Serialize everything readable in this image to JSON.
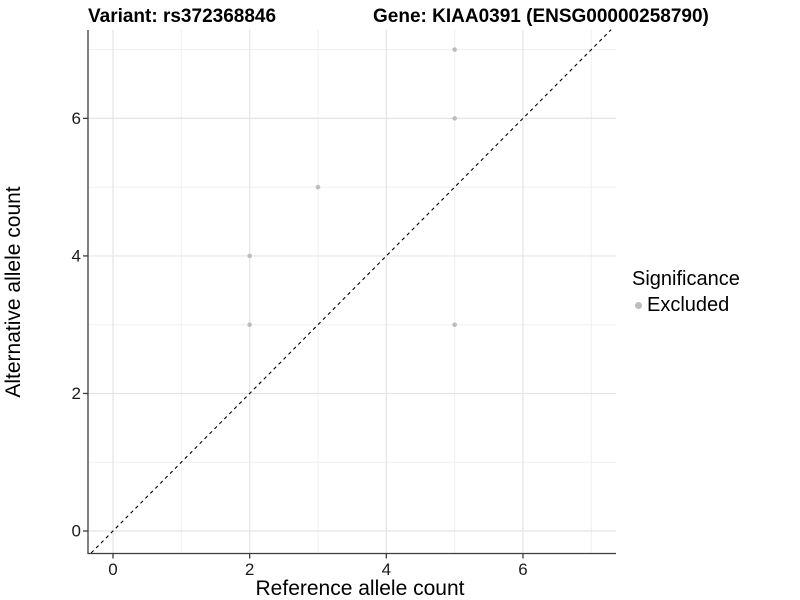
{
  "header": {
    "title_left": "Variant: rs372368846",
    "title_right": "Gene: KIAA0391 (ENSG00000258790)"
  },
  "chart_data": {
    "type": "scatter",
    "title": "Variant: rs372368846  /  Gene: KIAA0391 (ENSG00000258790)",
    "xlabel": "Reference allele count",
    "ylabel": "Alternative allele count",
    "xlim": [
      -0.35,
      7.35
    ],
    "ylim": [
      -0.32,
      7.29
    ],
    "x_ticks": [
      0,
      2,
      4,
      6
    ],
    "y_ticks": [
      0,
      2,
      4,
      6
    ],
    "x_minor_ticks": [
      1,
      3,
      5,
      7
    ],
    "y_minor_ticks": [
      1,
      3,
      5,
      7
    ],
    "grid": true,
    "identity_line": {
      "show": true,
      "style": "dashed",
      "color": "#000000"
    },
    "series": [
      {
        "name": "Excluded",
        "color": "#bdbdbd",
        "points": [
          [
            5,
            7
          ],
          [
            5,
            6
          ],
          [
            3,
            5
          ],
          [
            2,
            4
          ],
          [
            2,
            3
          ],
          [
            5,
            3
          ]
        ]
      }
    ],
    "legend": {
      "position": "right",
      "title": "Significance",
      "items": [
        {
          "label": "Excluded",
          "color": "#bdbdbd"
        }
      ]
    }
  },
  "colors": {
    "point_gray": "#bdbdbd",
    "grid_major": "#e4e4e4",
    "grid_minor": "#efefef",
    "axis_line": "#3c3c3c",
    "tick_label": "#1a1a1a",
    "background": "#ffffff"
  }
}
